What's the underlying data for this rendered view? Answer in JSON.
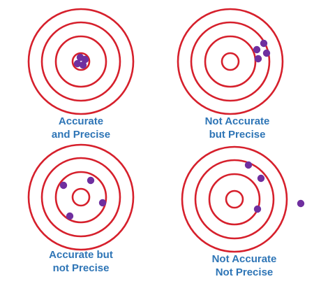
{
  "panels": [
    {
      "caption": [
        "Accurate",
        "and Precise"
      ],
      "shots": [
        [
          -1,
          -6
        ],
        [
          6,
          -3
        ],
        [
          -5,
          3
        ],
        [
          3,
          5
        ]
      ]
    },
    {
      "caption": [
        "Not Accurate",
        "but Precise"
      ],
      "shots": [
        [
          48,
          -26
        ],
        [
          38,
          -17
        ],
        [
          52,
          -12
        ],
        [
          40,
          -4
        ]
      ]
    },
    {
      "caption": [
        "Accurate but",
        "not Precise"
      ],
      "shots": [
        [
          -25,
          -17
        ],
        [
          14,
          -24
        ],
        [
          31,
          8
        ],
        [
          -16,
          27
        ]
      ]
    },
    {
      "caption": [
        "Not Accurate",
        "Not Precise"
      ],
      "shots": [
        [
          20,
          -49
        ],
        [
          38,
          -30
        ],
        [
          95,
          6
        ],
        [
          33,
          14
        ]
      ]
    }
  ],
  "colors": {
    "ring": "#d6202c",
    "dot": "#6f2f9f",
    "caption": "#2e75b6"
  }
}
